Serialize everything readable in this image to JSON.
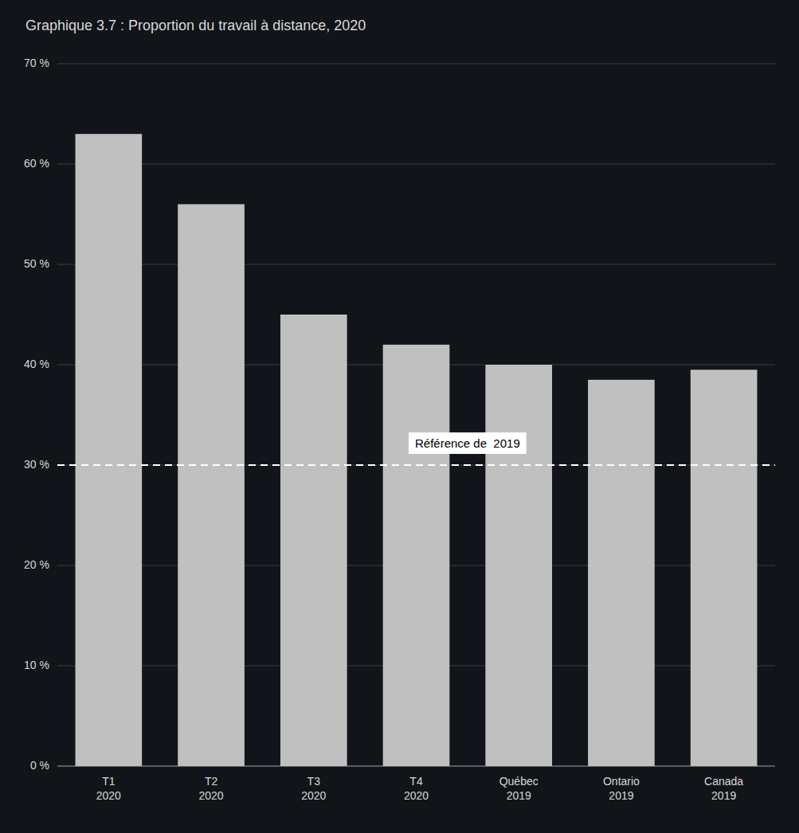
{
  "chart_data": {
    "type": "bar",
    "title": "Graphique 3.7 : Proportion du travail à distance, 2020",
    "categories": [
      "T1\n2020",
      "T2\n2020",
      "T3\n2020",
      "T4\n2020",
      "Québec\n2019",
      "Ontario\n2019",
      "Canada\n2019"
    ],
    "values": [
      0.63,
      0.56,
      0.45,
      0.42,
      0.4,
      0.385,
      0.395
    ],
    "color": "#c0c0c0",
    "ylim": [
      0.0,
      0.7
    ],
    "yticks": [
      {
        "value": 0.0,
        "label": "0 %"
      },
      {
        "value": 0.1,
        "label": "10 %"
      },
      {
        "value": 0.2,
        "label": "20 %"
      },
      {
        "value": 0.3,
        "label": "30 %"
      },
      {
        "value": 0.4,
        "label": "40 %"
      },
      {
        "value": 0.5,
        "label": "50 %"
      },
      {
        "value": 0.6,
        "label": "60 %"
      },
      {
        "value": 0.7,
        "label": "70 %"
      }
    ],
    "grid": true,
    "reference_line": {
      "value": 0.3,
      "label": "Référence de  2019"
    }
  }
}
